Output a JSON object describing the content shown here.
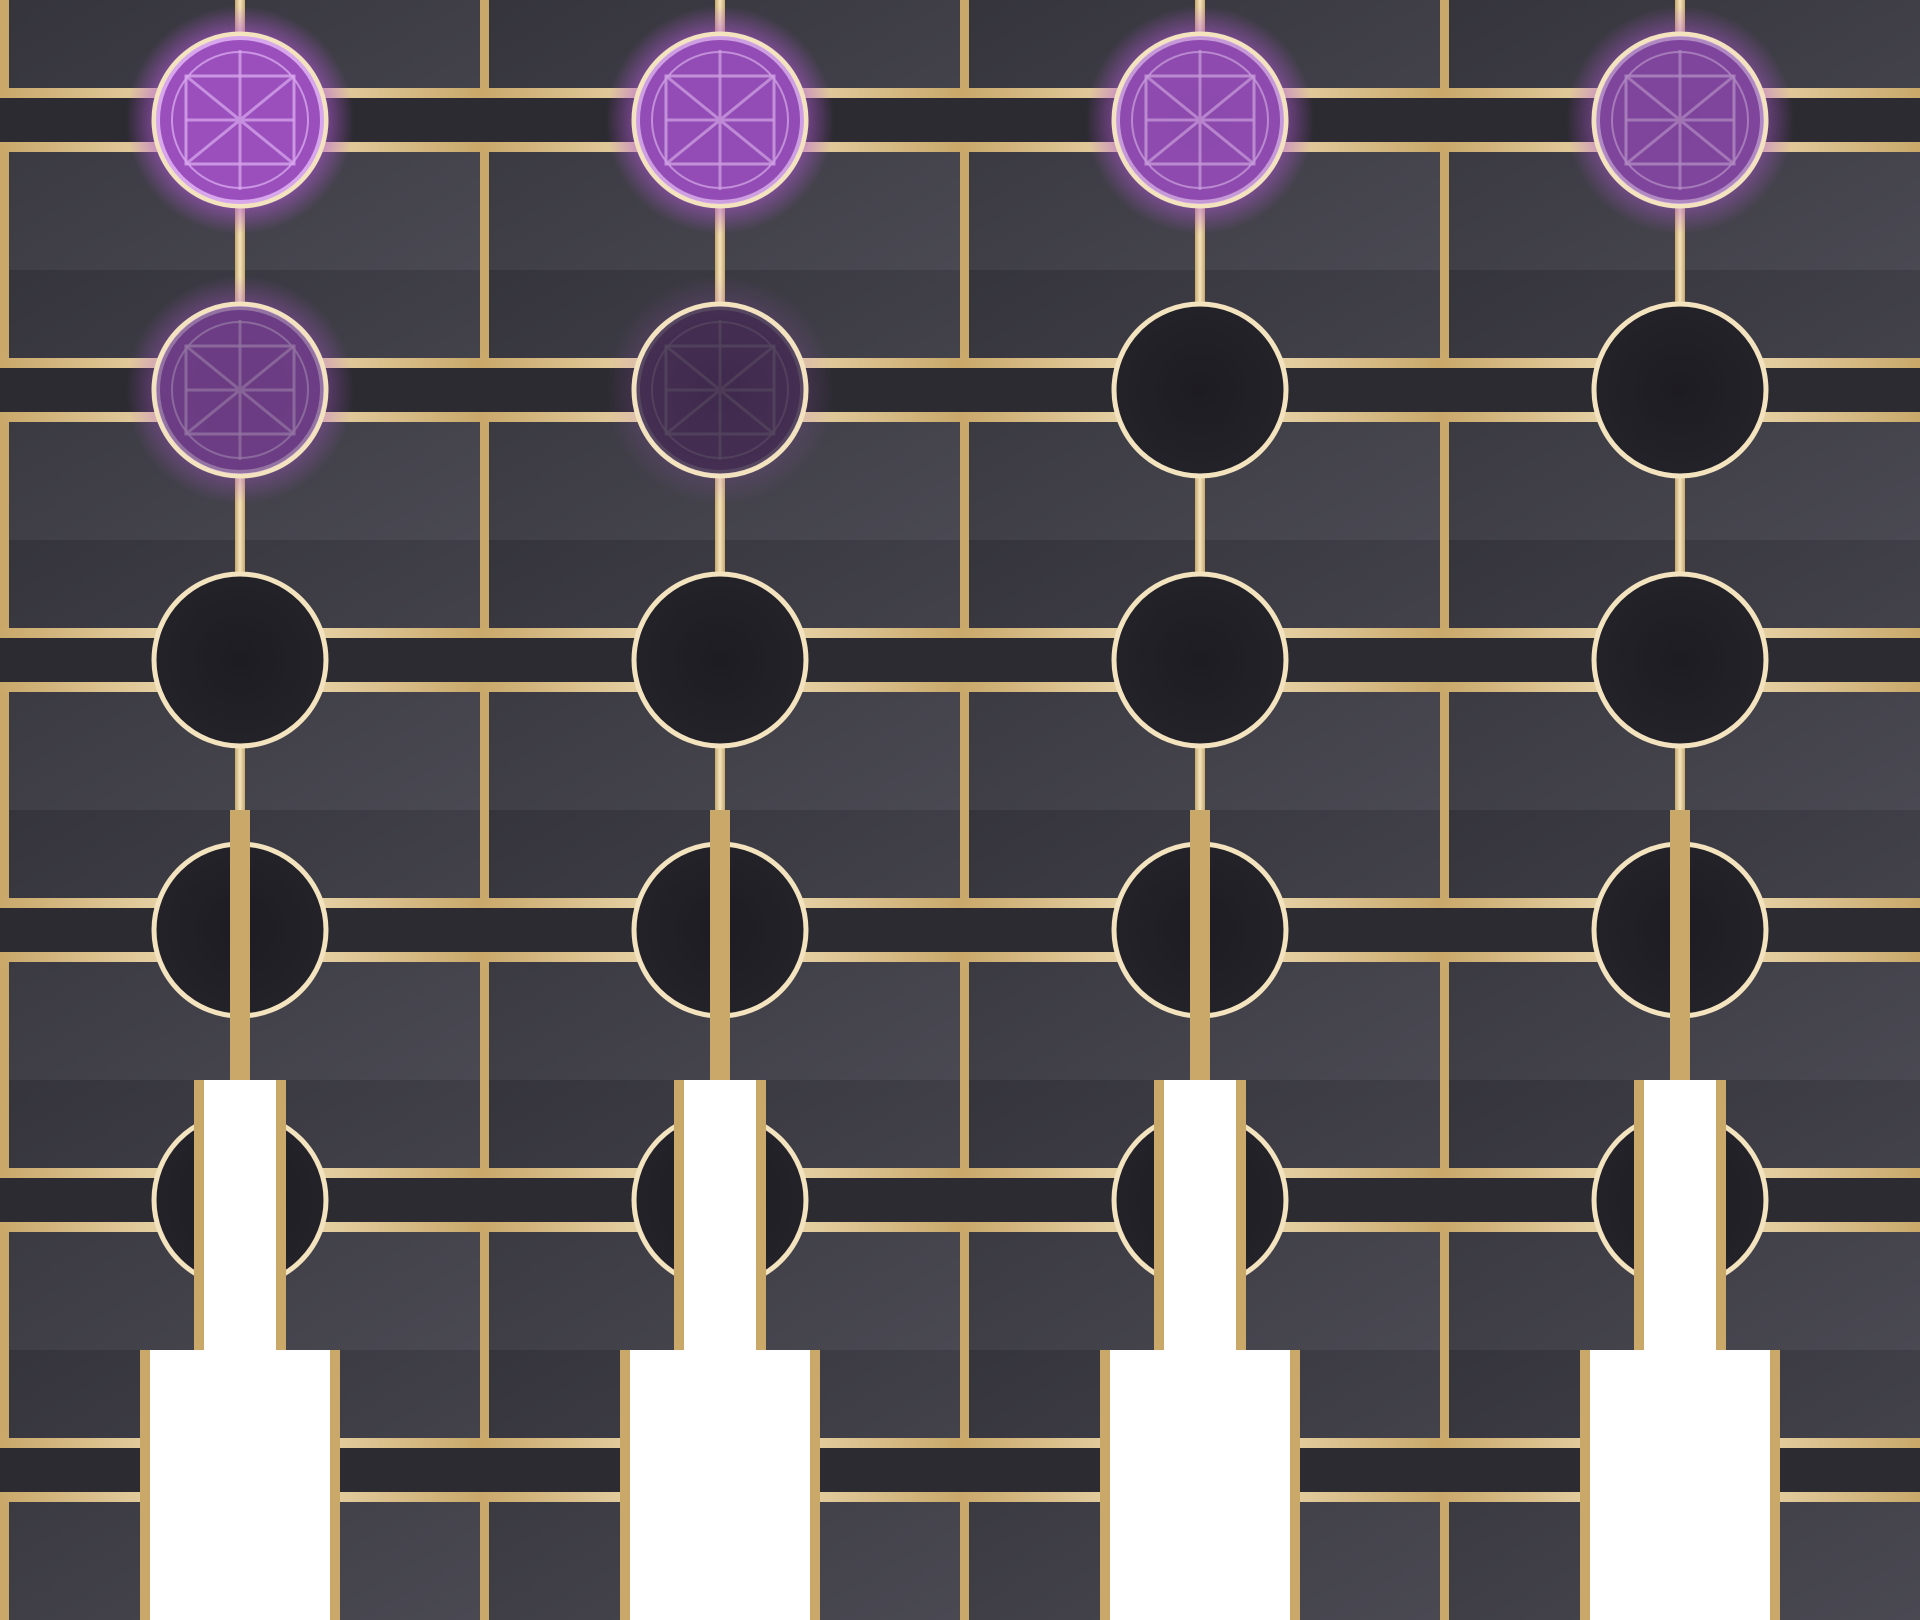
{
  "sprite_sheet": {
    "name": "magic-seal-node-animation",
    "columns": 4,
    "colors": {
      "background": "#ffffff",
      "tile_base": "#35343c",
      "tile_light": "#4a4952",
      "node_fill": "#24232a",
      "gold": "#c9a86a",
      "gold_light": "#f3e3bf",
      "glow": "#b45ad8",
      "seal_fill": "#9a4fbd",
      "seal_line": "#d7a6ec"
    },
    "rows": [
      {
        "name": "seal-glowing-row",
        "frames": [
          {
            "seal": 1.0
          },
          {
            "seal": 0.95
          },
          {
            "seal": 0.9
          },
          {
            "seal": 0.78
          }
        ]
      },
      {
        "name": "seal-fading-row",
        "frames": [
          {
            "seal": 0.62
          },
          {
            "seal": 0.28
          },
          {
            "seal": 0.0
          },
          {
            "seal": 0.0
          }
        ]
      },
      {
        "name": "empty-node-row",
        "frames": [
          {
            "seal": 0.0
          },
          {
            "seal": 0.0
          },
          {
            "seal": 0.0
          },
          {
            "seal": 0.0
          }
        ]
      }
    ],
    "split_rows": [
      {
        "name": "node-split-row-1",
        "split": 0.0
      },
      {
        "name": "node-split-row-2",
        "split": 0.3
      },
      {
        "name": "node-split-row-3",
        "split": 0.75
      }
    ]
  }
}
